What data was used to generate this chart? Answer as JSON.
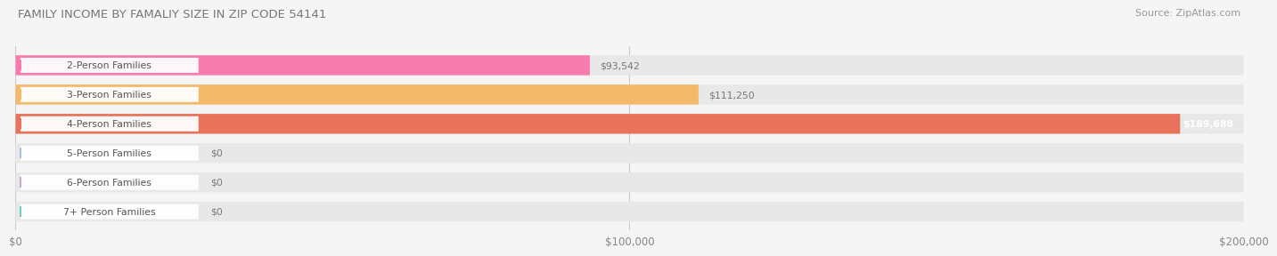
{
  "title": "FAMILY INCOME BY FAMALIY SIZE IN ZIP CODE 54141",
  "source": "Source: ZipAtlas.com",
  "categories": [
    "2-Person Families",
    "3-Person Families",
    "4-Person Families",
    "5-Person Families",
    "6-Person Families",
    "7+ Person Families"
  ],
  "values": [
    93542,
    111250,
    189688,
    0,
    0,
    0
  ],
  "bar_colors": [
    "#F87BAD",
    "#F5B96A",
    "#E8735A",
    "#A8BDE8",
    "#C8A8DC",
    "#72CACA"
  ],
  "value_labels": [
    "$93,542",
    "$111,250",
    "$189,688",
    "$0",
    "$0",
    "$0"
  ],
  "xlim": [
    0,
    200000
  ],
  "xtick_labels": [
    "$0",
    "$100,000",
    "$200,000"
  ],
  "bg_color": "#f5f5f5",
  "bar_bg_color": "#e8e8e8",
  "bar_height": 0.68,
  "pill_color": "#ffffff"
}
